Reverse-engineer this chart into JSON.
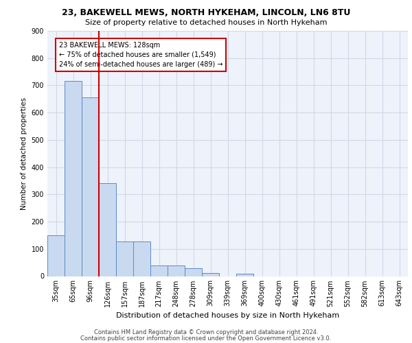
{
  "title1": "23, BAKEWELL MEWS, NORTH HYKEHAM, LINCOLN, LN6 8TU",
  "title2": "Size of property relative to detached houses in North Hykeham",
  "xlabel": "Distribution of detached houses by size in North Hykeham",
  "ylabel": "Number of detached properties",
  "annotation_line1": "23 BAKEWELL MEWS: 128sqm",
  "annotation_line2": "← 75% of detached houses are smaller (1,549)",
  "annotation_line3": "24% of semi-detached houses are larger (489) →",
  "footer1": "Contains HM Land Registry data © Crown copyright and database right 2024.",
  "footer2": "Contains public sector information licensed under the Open Government Licence v3.0.",
  "bar_labels": [
    "35sqm",
    "65sqm",
    "96sqm",
    "126sqm",
    "157sqm",
    "187sqm",
    "217sqm",
    "248sqm",
    "278sqm",
    "309sqm",
    "339sqm",
    "369sqm",
    "400sqm",
    "430sqm",
    "461sqm",
    "491sqm",
    "521sqm",
    "552sqm",
    "582sqm",
    "613sqm",
    "643sqm"
  ],
  "bar_values": [
    150,
    715,
    655,
    340,
    128,
    128,
    40,
    40,
    28,
    12,
    0,
    8,
    0,
    0,
    0,
    0,
    0,
    0,
    0,
    0,
    0
  ],
  "bar_color": "#c9d9f0",
  "bar_edge_color": "#5a8ac6",
  "vline_x_index": 3,
  "vline_color": "#cc0000",
  "annotation_box_color": "#cc0000",
  "ylim": [
    0,
    900
  ],
  "yticks": [
    0,
    100,
    200,
    300,
    400,
    500,
    600,
    700,
    800,
    900
  ],
  "grid_color": "#d0d8e8",
  "background_color": "#eef2fa",
  "title1_fontsize": 9,
  "title2_fontsize": 8,
  "ylabel_fontsize": 7.5,
  "xlabel_fontsize": 8,
  "tick_fontsize": 7,
  "footer_fontsize": 6,
  "ann_fontsize": 7
}
